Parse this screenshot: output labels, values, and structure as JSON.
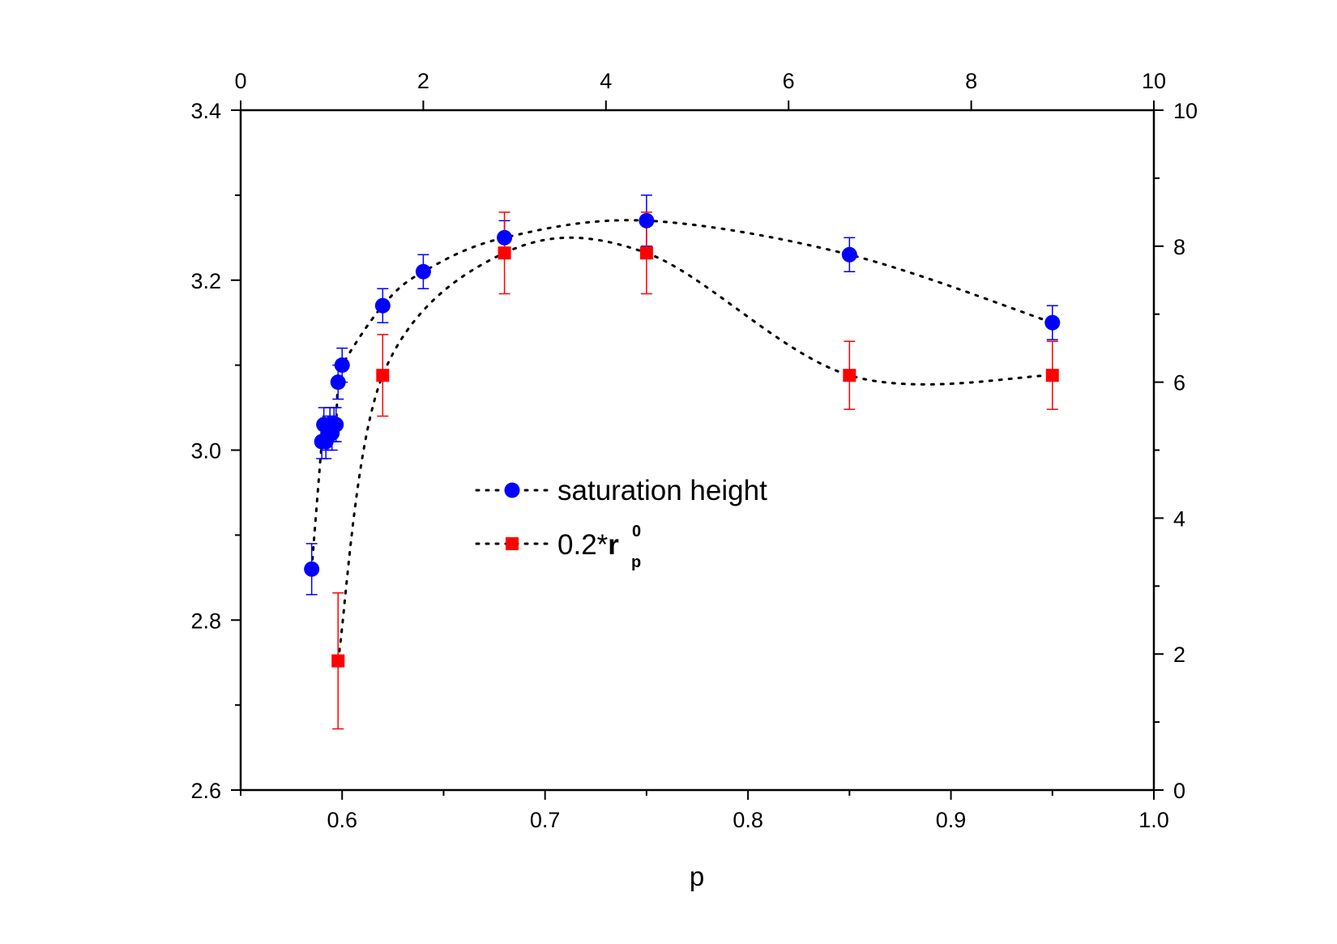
{
  "chart_data": {
    "type": "scatter",
    "xlabel": "p",
    "x_range": [
      0.55,
      1.0
    ],
    "x_ticks": [
      0.6,
      0.7,
      0.8,
      0.9,
      1.0
    ],
    "x_tick_labels": [
      "0.6",
      "0.7",
      "0.8",
      "0.9",
      "1.0"
    ],
    "x_minor_ticks": [
      0.55,
      0.65,
      0.75,
      0.85,
      0.95
    ],
    "top_axis_range": [
      0,
      10
    ],
    "top_ticks": [
      0,
      2,
      4,
      6,
      8,
      10
    ],
    "top_tick_labels": [
      "0",
      "2",
      "4",
      "6",
      "8",
      "10"
    ],
    "left_axis_range": [
      2.6,
      3.4
    ],
    "left_ticks": [
      2.6,
      2.8,
      3.0,
      3.2,
      3.4
    ],
    "left_tick_labels": [
      "2.6",
      "2.8",
      "3.0",
      "3.2",
      "3.4"
    ],
    "left_minor_ticks": [
      2.7,
      2.9,
      3.1,
      3.3
    ],
    "right_axis_range": [
      0,
      10
    ],
    "right_ticks": [
      0,
      2,
      4,
      6,
      8,
      10
    ],
    "right_tick_labels": [
      "0",
      "2",
      "4",
      "6",
      "8",
      "10"
    ],
    "right_minor_ticks": [
      1,
      3,
      5,
      7,
      9
    ],
    "series": [
      {
        "name": "saturation height",
        "axis": "left",
        "marker": "circle",
        "color": "#0000ff",
        "line_style": "dotted",
        "x": [
          0.585,
          0.59,
          0.591,
          0.592,
          0.593,
          0.594,
          0.595,
          0.596,
          0.597,
          0.598,
          0.6,
          0.62,
          0.64,
          0.68,
          0.75,
          0.85,
          0.95
        ],
        "y": [
          2.86,
          3.01,
          3.03,
          3.01,
          3.02,
          3.03,
          3.02,
          3.03,
          3.03,
          3.08,
          3.1,
          3.17,
          3.21,
          3.25,
          3.27,
          3.23,
          3.15
        ],
        "err": [
          0.03,
          0.02,
          0.02,
          0.02,
          0.02,
          0.02,
          0.02,
          0.02,
          0.02,
          0.02,
          0.02,
          0.02,
          0.02,
          0.02,
          0.03,
          0.02,
          0.02
        ]
      },
      {
        "name": "0.2*r_p^0",
        "axis": "right",
        "marker": "square",
        "color": "#ff0000",
        "line_style": "dotted",
        "x": [
          0.598,
          0.62,
          0.68,
          0.75,
          0.85,
          0.95
        ],
        "y": [
          1.9,
          6.1,
          7.9,
          7.9,
          6.1,
          6.1
        ],
        "err": [
          1.0,
          0.6,
          0.6,
          0.6,
          0.5,
          0.5
        ]
      }
    ],
    "legend": {
      "position": "center",
      "entries": [
        {
          "text": "saturation height"
        },
        {
          "base": "0.2*",
          "var": "r",
          "sub": "p",
          "sup": "0"
        }
      ]
    }
  }
}
